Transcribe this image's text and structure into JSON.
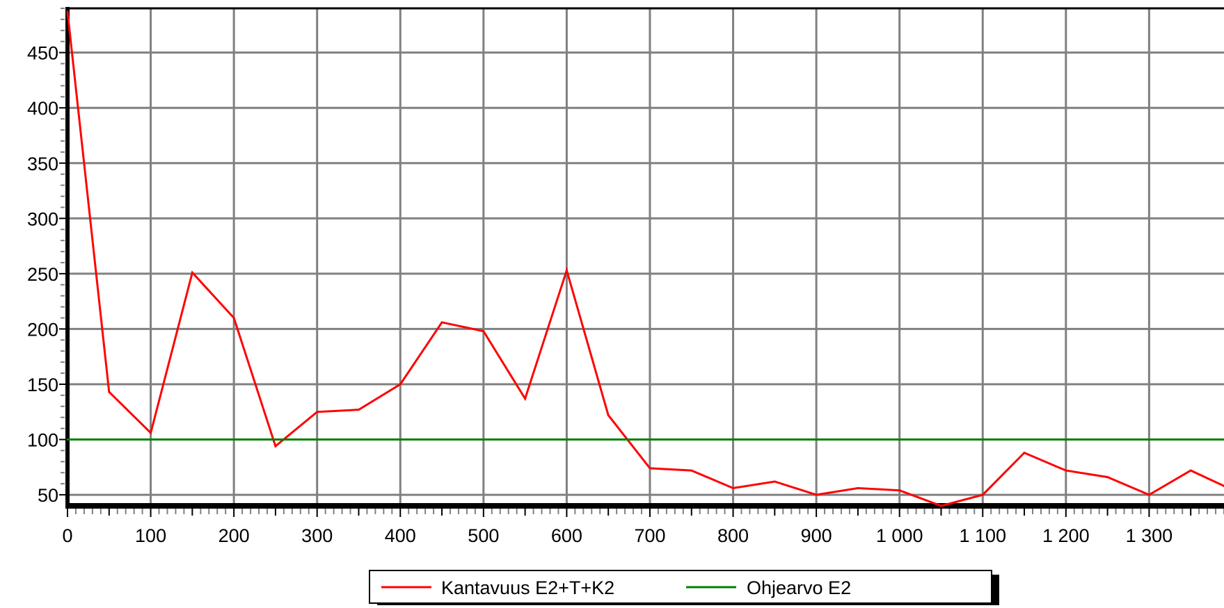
{
  "chart_data": {
    "type": "line",
    "title": "",
    "xlabel": "",
    "ylabel": "",
    "xlim": [
      0,
      1390
    ],
    "ylim": [
      40,
      490
    ],
    "x_ticks": [
      0,
      100,
      200,
      300,
      400,
      500,
      600,
      700,
      800,
      900,
      1000,
      1100,
      1200,
      1300
    ],
    "x_tick_labels": [
      "0",
      "100",
      "200",
      "300",
      "400",
      "500",
      "600",
      "700",
      "800",
      "900",
      "1 000",
      "1 100",
      "1 200",
      "1 300"
    ],
    "y_ticks": [
      50,
      100,
      150,
      200,
      250,
      300,
      350,
      400,
      450
    ],
    "y_tick_labels": [
      "50",
      "100",
      "150",
      "200",
      "250",
      "300",
      "350",
      "400",
      "450"
    ],
    "grid": true,
    "legend_position": "bottom-center",
    "series": [
      {
        "name": "Kantavuus E2+T+K2",
        "color": "#ff0000",
        "x": [
          0,
          50,
          100,
          150,
          200,
          250,
          300,
          350,
          400,
          450,
          500,
          550,
          600,
          650,
          700,
          750,
          800,
          850,
          900,
          950,
          1000,
          1050,
          1100,
          1150,
          1200,
          1250,
          1300,
          1350,
          1390
        ],
        "y": [
          487,
          143,
          106,
          251,
          210,
          94,
          125,
          127,
          150,
          206,
          198,
          137,
          253,
          122,
          74,
          72,
          56,
          62,
          50,
          56,
          54,
          40,
          50,
          88,
          72,
          66,
          50,
          72,
          58
        ]
      },
      {
        "name": "Ohjearvo E2",
        "color": "#008000",
        "x": [
          0,
          1390
        ],
        "y": [
          100,
          100
        ]
      }
    ]
  }
}
